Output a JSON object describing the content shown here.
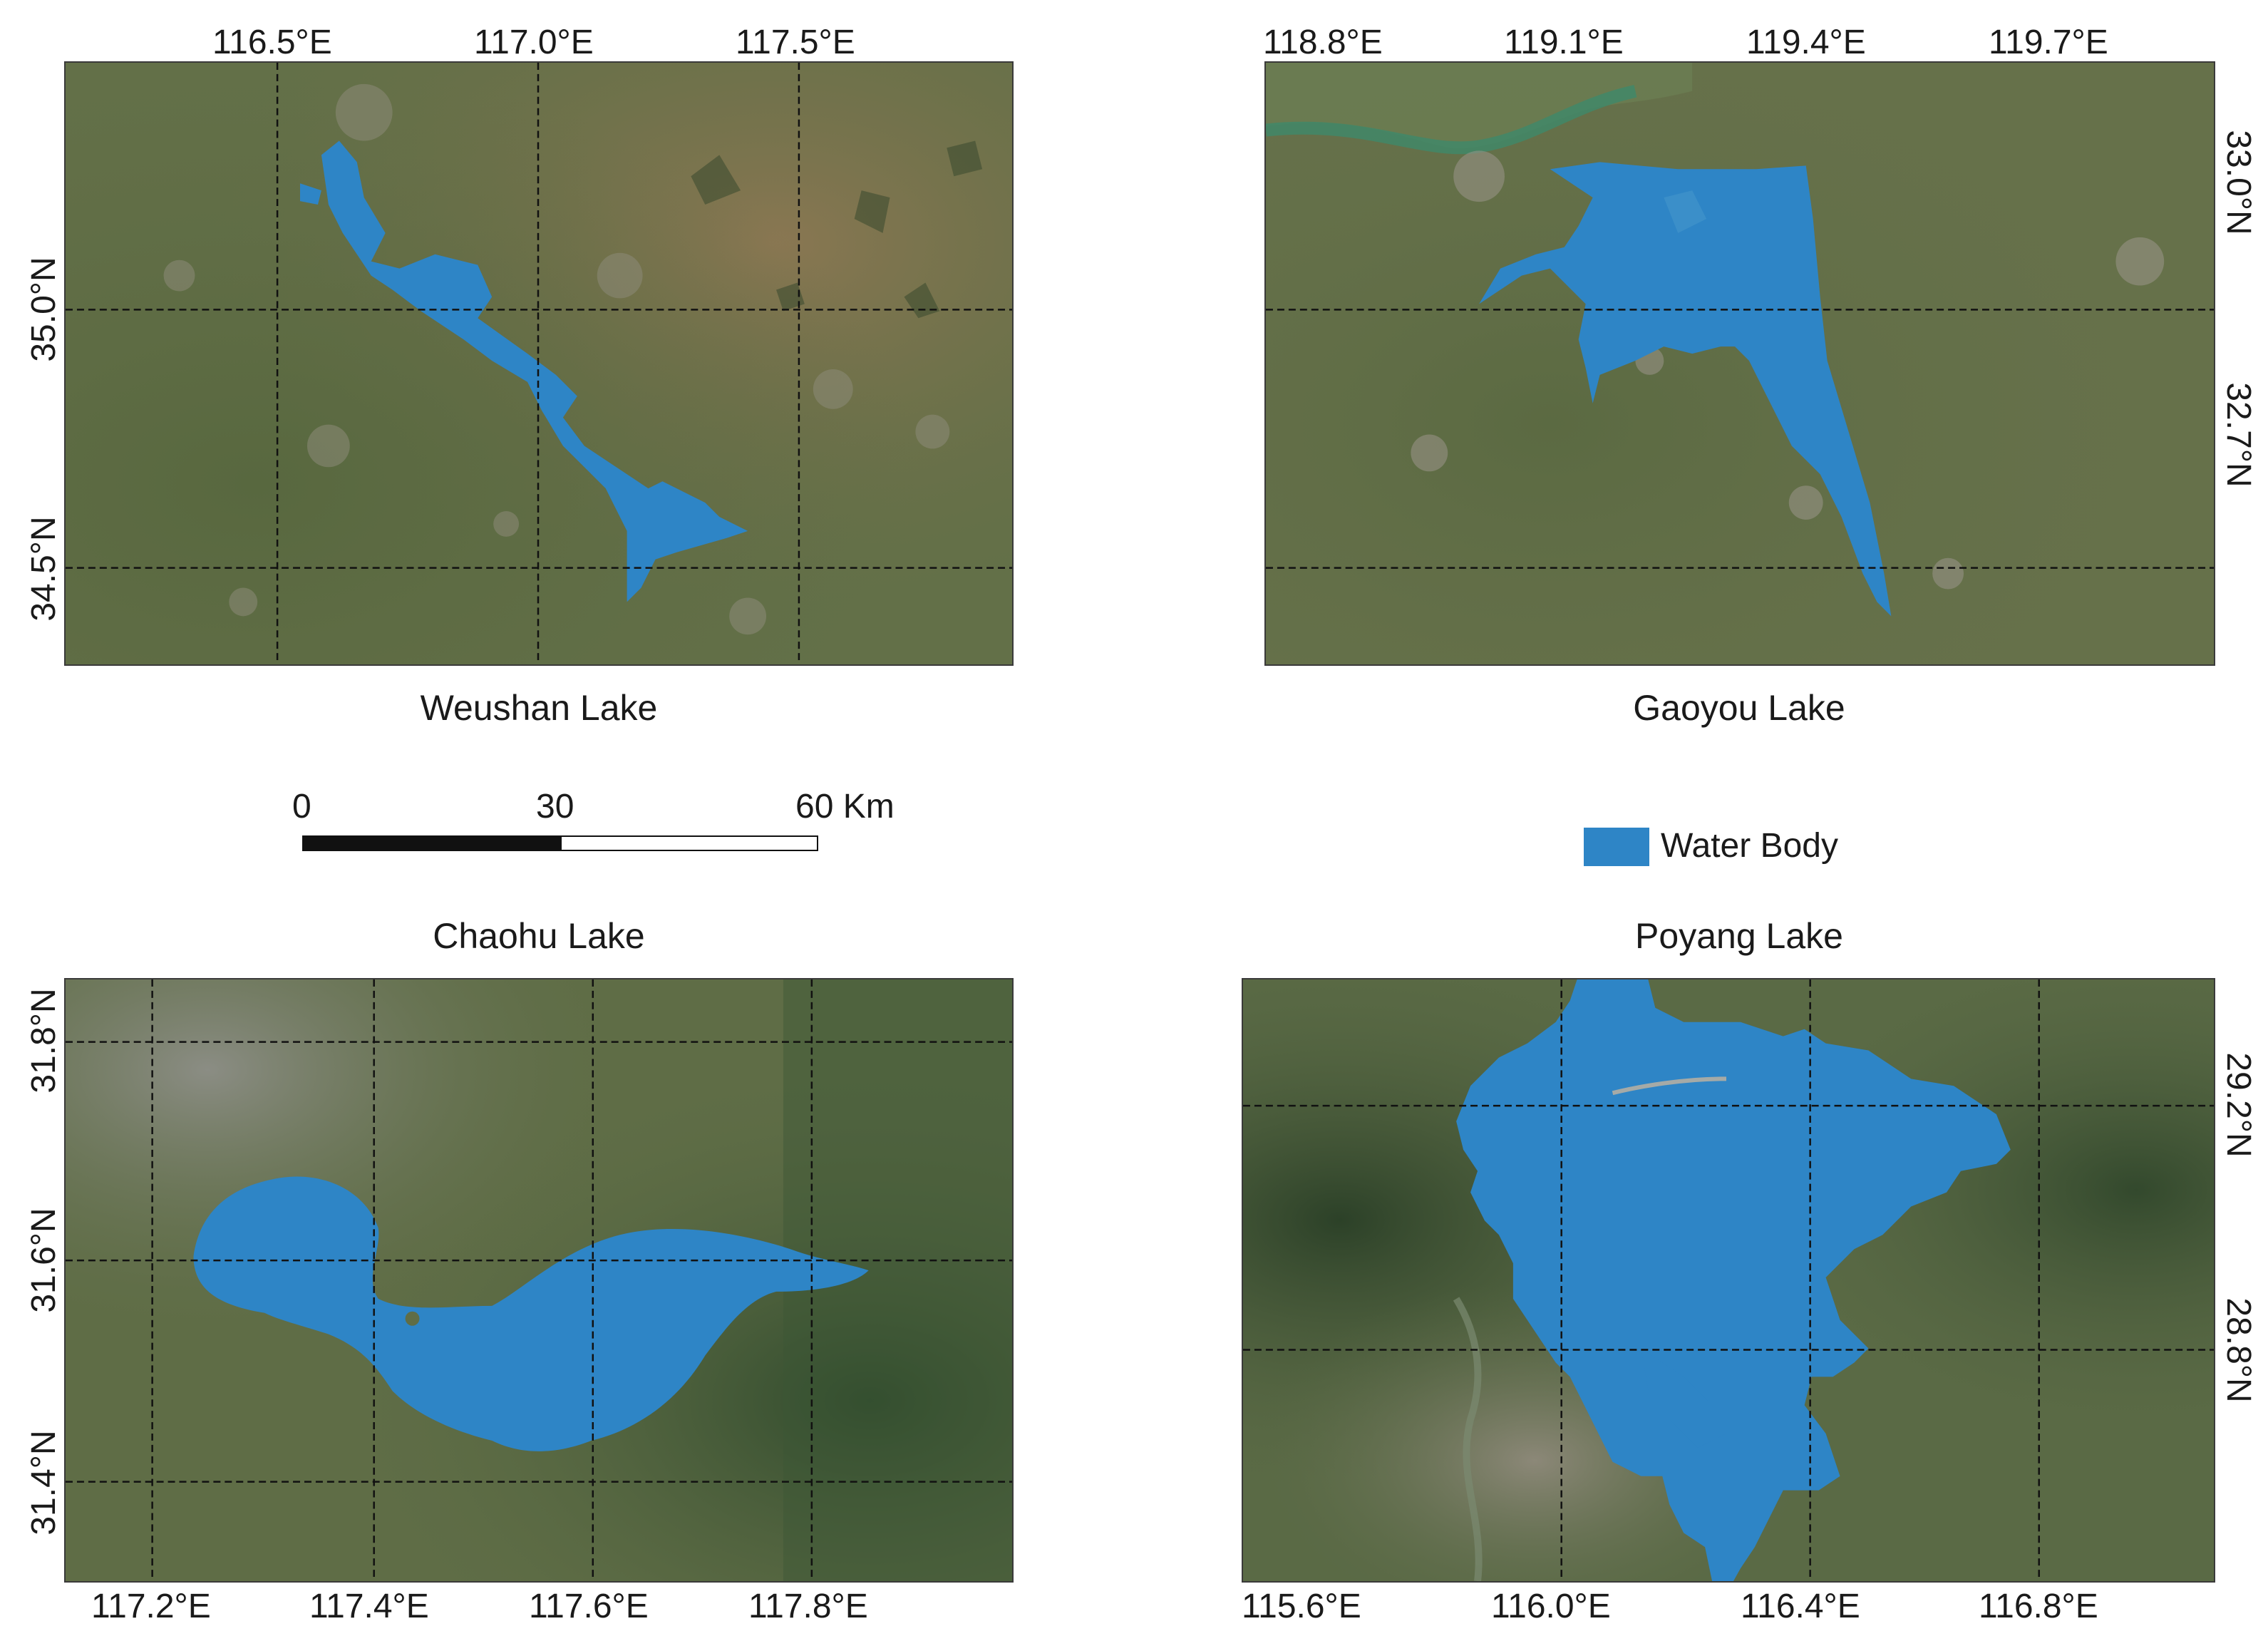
{
  "maps": {
    "weushan": {
      "title": "Weushan Lake",
      "lon_labels": [
        "116.5°E",
        "117.0°E",
        "117.5°E"
      ],
      "lat_labels": [
        "35.0°N",
        "34.5°N"
      ]
    },
    "gaoyou": {
      "title": "Gaoyou Lake",
      "lon_labels": [
        "118.8°E",
        "119.1°E",
        "119.4°E",
        "119.7°E"
      ],
      "lat_labels": [
        "33.0°N",
        "32.7°N"
      ]
    },
    "chaohu": {
      "title": "Chaohu Lake",
      "lon_labels": [
        "117.2°E",
        "117.4°E",
        "117.6°E",
        "117.8°E"
      ],
      "lat_labels": [
        "31.8°N",
        "31.6°N",
        "31.4°N"
      ]
    },
    "poyang": {
      "title": "Poyang Lake",
      "lon_labels": [
        "115.6°E",
        "116.0°E",
        "116.4°E",
        "116.8°E"
      ],
      "lat_labels": [
        "29.2°N",
        "28.8°N"
      ]
    }
  },
  "scale_bar": {
    "tick_0": "0",
    "tick_1": "30",
    "tick_2": "60 Km"
  },
  "legend": {
    "label": "Water Body",
    "color": "#2e85c6"
  },
  "colors": {
    "water": "#2e85c6",
    "land": "#5f6d45",
    "forest": "#3f5a36"
  }
}
